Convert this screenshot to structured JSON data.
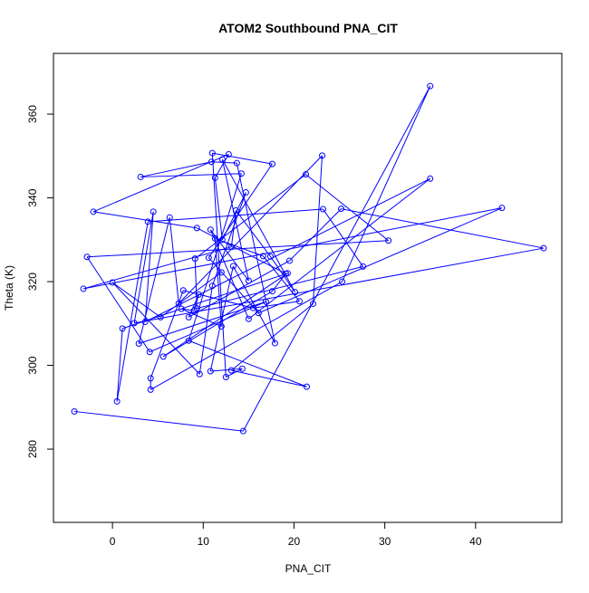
{
  "chart_data": {
    "type": "line",
    "title": "ATOM2 Southbound PNA_CIT",
    "xlabel": "PNA_CIT",
    "ylabel": "Theta (K)",
    "xlim": [
      -6.5,
      49.5
    ],
    "ylim": [
      262.5,
      374.5
    ],
    "x_ticks": [
      0,
      10,
      20,
      30,
      40
    ],
    "y_ticks": [
      280,
      300,
      320,
      340,
      360
    ],
    "grid": false,
    "legend": "none",
    "line_color": "#0000ff",
    "marker": "open-circle",
    "series": [
      {
        "points": [
          [
            -4.2,
            289.0
          ],
          [
            14.4,
            284.3
          ],
          [
            35.0,
            366.7
          ],
          [
            25.3,
            320.0
          ],
          [
            4.2,
            294.2
          ],
          [
            4.2,
            296.9
          ],
          [
            7.8,
            317.9
          ],
          [
            15.5,
            313.7
          ],
          [
            20.6,
            315.3
          ],
          [
            16.6,
            326.1
          ],
          [
            11.3,
            330.3
          ],
          [
            12.0,
            309.3
          ],
          [
            7.6,
            313.5
          ],
          [
            9.0,
            313.1
          ],
          [
            9.5,
            316.9
          ],
          [
            8.4,
            311.5
          ],
          [
            19.5,
            325.0
          ],
          [
            25.2,
            337.4
          ],
          [
            47.5,
            328.0
          ],
          [
            2.4,
            310.1
          ],
          [
            4.5,
            336.7
          ],
          [
            3.6,
            310.4
          ],
          [
            35.0,
            344.6
          ],
          [
            15.0,
            311.1
          ],
          [
            10.8,
            332.4
          ],
          [
            15.0,
            320.2
          ],
          [
            12.1,
            349.2
          ],
          [
            20.1,
            317.5
          ],
          [
            17.4,
            326.0
          ],
          [
            13.6,
            337.0
          ],
          [
            13.1,
            328.3
          ],
          [
            -3.2,
            318.3
          ],
          [
            42.9,
            337.6
          ],
          [
            16.1,
            312.5
          ],
          [
            10.6,
            325.7
          ],
          [
            17.6,
            348.1
          ],
          [
            11.0,
            350.7
          ],
          [
            12.5,
            297.2
          ],
          [
            14.3,
            299.2
          ],
          [
            10.8,
            298.6
          ],
          [
            13.3,
            323.7
          ],
          [
            17.9,
            305.3
          ],
          [
            13.7,
            348.3
          ],
          [
            10.9,
            348.6
          ],
          [
            3.1,
            345.0
          ],
          [
            14.2,
            345.8
          ],
          [
            8.4,
            305.9
          ],
          [
            21.4,
            294.9
          ],
          [
            13.1,
            298.8
          ],
          [
            22.1,
            314.7
          ],
          [
            23.1,
            350.1
          ],
          [
            7.3,
            314.8
          ],
          [
            6.3,
            335.3
          ],
          [
            2.9,
            305.2
          ],
          [
            16.9,
            315.2
          ],
          [
            4.1,
            303.2
          ],
          [
            -2.8,
            325.9
          ],
          [
            30.4,
            329.8
          ],
          [
            21.3,
            345.6
          ],
          [
            9.1,
            325.5
          ],
          [
            9.3,
            313.6
          ],
          [
            27.6,
            323.6
          ],
          [
            23.2,
            337.3
          ],
          [
            3.9,
            334.3
          ],
          [
            0.5,
            291.4
          ],
          [
            1.1,
            308.8
          ],
          [
            19.3,
            322.0
          ],
          [
            5.6,
            302.1
          ],
          [
            17.6,
            317.7
          ],
          [
            19.1,
            321.9
          ],
          [
            9.3,
            332.8
          ],
          [
            -2.1,
            336.7
          ],
          [
            12.8,
            350.4
          ],
          [
            11.3,
            344.8
          ],
          [
            12.1,
            330.0
          ],
          [
            14.7,
            341.3
          ],
          [
            11.0,
            319.0
          ],
          [
            9.6,
            297.9
          ],
          [
            0.0,
            319.8
          ],
          [
            5.3,
            311.5
          ],
          [
            12.0,
            322.2
          ]
        ]
      }
    ]
  }
}
